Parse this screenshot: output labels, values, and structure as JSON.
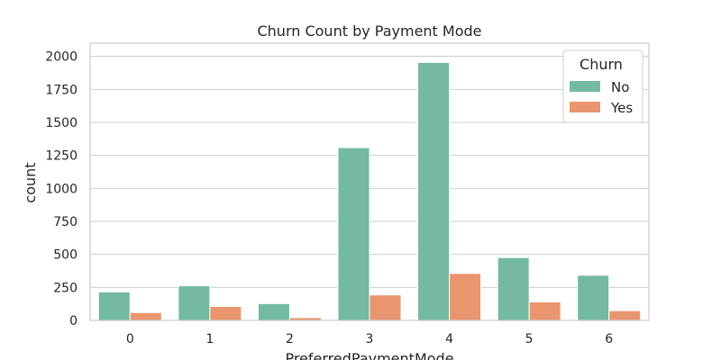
{
  "chart_data": {
    "type": "bar",
    "title": "Churn Count by Payment Mode",
    "xlabel": "PreferredPaymentMode",
    "ylabel": "count",
    "categories": [
      "0",
      "1",
      "2",
      "3",
      "4",
      "5",
      "6"
    ],
    "series": [
      {
        "name": "No",
        "values": [
          216,
          262,
          127,
          1309,
          1954,
          476,
          342
        ],
        "color": "#74b9a1"
      },
      {
        "name": "Yes",
        "values": [
          60,
          106,
          21,
          193,
          356,
          140,
          74
        ],
        "color": "#e9966f"
      }
    ],
    "yticks": [
      0,
      250,
      500,
      750,
      1000,
      1250,
      1500,
      1750,
      2000
    ],
    "ylim": [
      0,
      2100
    ],
    "legend": {
      "title": "Churn",
      "position": "top-right"
    },
    "grid": "horizontal"
  }
}
